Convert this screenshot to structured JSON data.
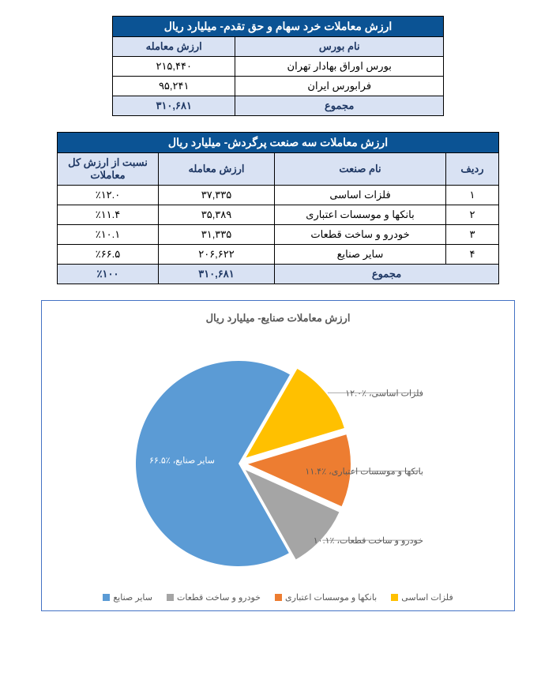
{
  "table1": {
    "title": "ارزش معاملات خرد سهام و حق تقدم- میلیارد ریال",
    "columns": [
      "نام بورس",
      "ارزش معامله"
    ],
    "rows": [
      [
        "بورس اوراق بهادار تهران",
        "۲۱۵,۴۴۰"
      ],
      [
        "فرابورس ایران",
        "۹۵,۲۴۱"
      ]
    ],
    "total": [
      "مجموع",
      "۳۱۰,۶۸۱"
    ]
  },
  "table2": {
    "title": "ارزش معاملات سه صنعت پرگردش- میلیارد ریال",
    "columns": [
      "ردیف",
      "نام صنعت",
      "ارزش معامله",
      "نسبت از ارزش کل معاملات"
    ],
    "rows": [
      [
        "۱",
        "فلزات اساسی",
        "۳۷,۳۳۵",
        "٪۱۲.۰"
      ],
      [
        "۲",
        "بانکها و موسسات اعتباری",
        "۳۵,۳۸۹",
        "٪۱۱.۴"
      ],
      [
        "۳",
        "خودرو و ساخت قطعات",
        "۳۱,۳۳۵",
        "٪۱۰.۱"
      ],
      [
        "۴",
        "سایر صنایع",
        "۲۰۶,۶۲۲",
        "٪۶۶.۵"
      ]
    ],
    "total": [
      "مجموع",
      "",
      "۳۱۰,۶۸۱",
      "٪۱۰۰"
    ]
  },
  "chart": {
    "title": "ارزش معاملات صنایع- میلیارد ریال",
    "type": "pie",
    "slices": [
      {
        "label": "فلزات اساسی",
        "pct": 12.0,
        "pct_label": "٪۱۲.۰",
        "color": "#ffc000"
      },
      {
        "label": "بانکها و موسسات اعتباری",
        "pct": 11.4,
        "pct_label": "٪۱۱.۴",
        "color": "#ed7d31"
      },
      {
        "label": "خودرو و ساخت قطعات",
        "pct": 10.1,
        "pct_label": "٪۱۰.۱",
        "color": "#a5a5a5"
      },
      {
        "label": "سایر صنایع",
        "pct": 66.5,
        "pct_label": "٪۶۶.۵",
        "color": "#5b9bd5"
      }
    ],
    "legend_order": [
      "سایر صنایع",
      "خودرو و ساخت قطعات",
      "بانکها و موسسات اعتباری",
      "فلزات اساسی"
    ],
    "legend_colors": [
      "#5b9bd5",
      "#a5a5a5",
      "#ed7d31",
      "#ffc000"
    ],
    "pie_radius": 130,
    "explode": 12,
    "start_angle_deg": -60,
    "ext_label_color": "#595959",
    "ext_label_fontsize": 11,
    "inside_label_color": "#ffffff",
    "background": "#ffffff",
    "border_color": "#4472c4"
  }
}
